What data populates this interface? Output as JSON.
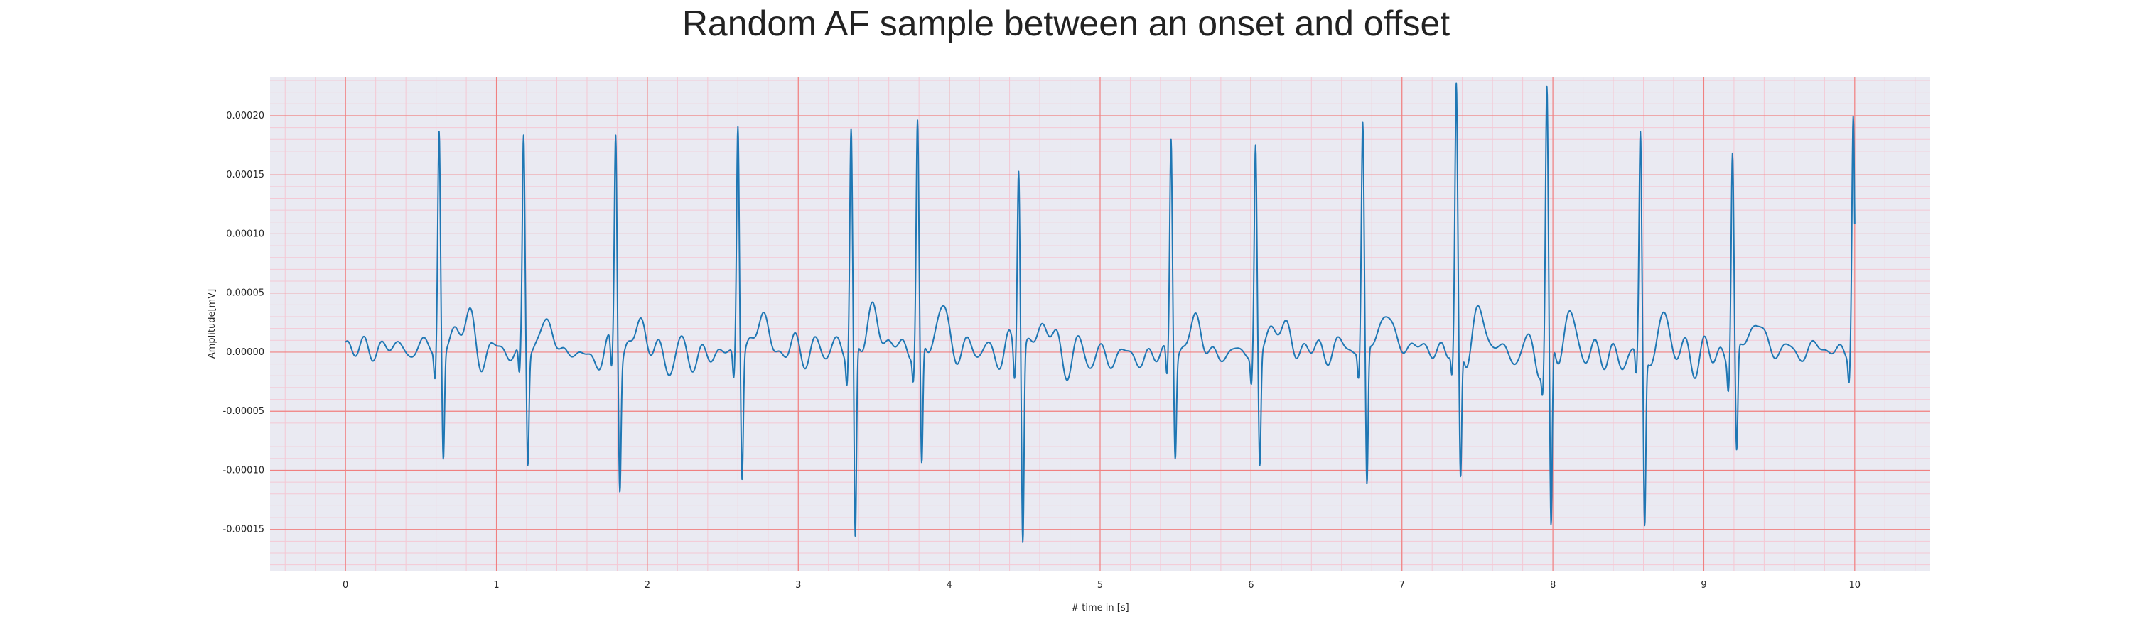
{
  "chart_data": {
    "type": "line",
    "title": "Random AF sample between an onset and offset",
    "xlabel": "# time in [s]",
    "ylabel": "Amplitude[mV]",
    "xlim": [
      -0.5,
      10.5
    ],
    "ylim": [
      -0.000185,
      0.000233
    ],
    "x_ticks": [
      0,
      1,
      2,
      3,
      4,
      5,
      6,
      7,
      8,
      9,
      10
    ],
    "x_tick_labels": [
      "0",
      "1",
      "2",
      "3",
      "4",
      "5",
      "6",
      "7",
      "8",
      "9",
      "10"
    ],
    "y_ticks": [
      -0.00015,
      -0.0001,
      -5e-05,
      0,
      5e-05,
      0.0001,
      0.00015,
      0.0002
    ],
    "y_tick_labels": [
      "-0.00015",
      "-0.00010",
      "-0.00005",
      "0.00000",
      "0.00005",
      "0.00010",
      "0.00015",
      "0.00020"
    ],
    "grid": true,
    "major_grid_color": "#f08080",
    "minor_grid_color": "#f4c8d4",
    "background_color": "#eaeaf2",
    "line_color": "#1f77b4",
    "beats": [
      {
        "t": 0.62,
        "peak": 0.000187,
        "trough": -9.1e-05
      },
      {
        "t": 1.18,
        "peak": 0.000185,
        "trough": -9.2e-05
      },
      {
        "t": 1.79,
        "peak": 0.000195,
        "trough": -0.000103
      },
      {
        "t": 2.6,
        "peak": 0.000199,
        "trough": -0.000102
      },
      {
        "t": 3.35,
        "peak": 0.000187,
        "trough": -0.000166
      },
      {
        "t": 3.79,
        "peak": 0.000188,
        "trough": -0.000106
      },
      {
        "t": 4.46,
        "peak": 0.000168,
        "trough": -0.000158
      },
      {
        "t": 5.47,
        "peak": 0.000189,
        "trough": -8.1e-05
      },
      {
        "t": 6.03,
        "peak": 0.00018,
        "trough": -9.5e-05
      },
      {
        "t": 6.74,
        "peak": 0.000191,
        "trough": -0.000118
      },
      {
        "t": 7.36,
        "peak": 0.00021,
        "trough": -0.000117
      },
      {
        "t": 7.96,
        "peak": 0.000215,
        "trough": -0.000163
      },
      {
        "t": 8.58,
        "peak": 0.000184,
        "trough": -0.000145
      },
      {
        "t": 9.19,
        "peak": 0.000174,
        "trough": -8.9e-05
      },
      {
        "t": 9.99,
        "peak": 0.00019,
        "trough": -3e-05
      }
    ]
  }
}
